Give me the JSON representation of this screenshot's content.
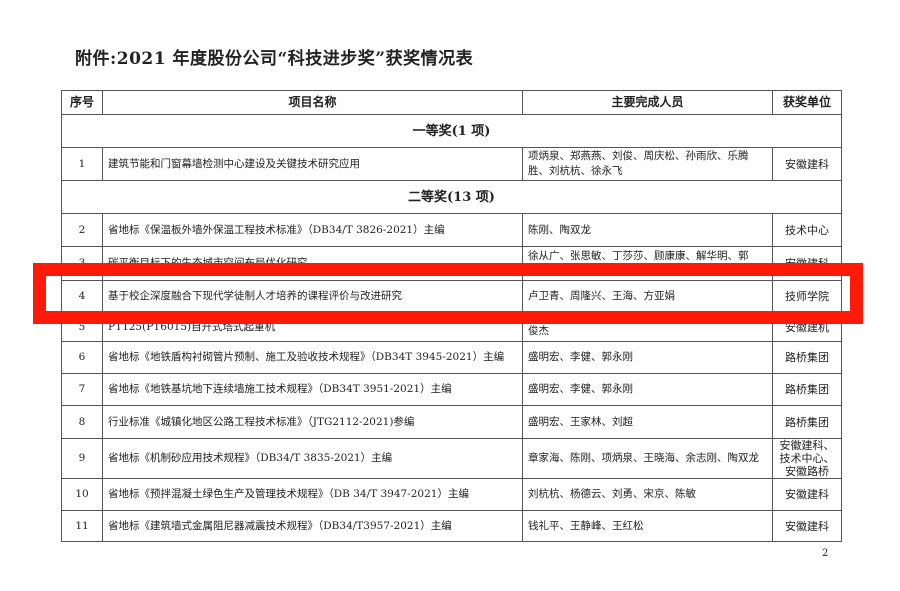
{
  "title": "附件:2021 年度股份公司“科技进步奖”获奖情况表",
  "headers": [
    "序号",
    "项目名称",
    "主要完成人员",
    "获奖单位"
  ],
  "sections": {
    "first": "一等奖(1 项)",
    "second": "二等奖(13 项)"
  },
  "rows": [
    {
      "no": "1",
      "name": "建筑节能和门窗幕墙检测中心建设及关键技术研究应用",
      "people": "项炳泉、郑燕燕、刘俊、周庆松、孙雨欣、乐腾胜、刘杭杭、徐永飞",
      "unit": "安徽建科"
    },
    {
      "no": "2",
      "name": "省地标《保温板外墙外保温工程技术标准》（DB34/T  3826-2021）主编",
      "people": "陈刚、陶双龙",
      "unit": "技术中心"
    },
    {
      "no": "3",
      "name": "碳平衡目标下的生态城市空间布局优化研究",
      "people": "徐从广、张思敏、丁莎莎、顾康康、解华明、郭",
      "unit": "安徽建科"
    },
    {
      "no": "4",
      "name": "基于校企深度融合下现代学徒制人才培养的课程评价与改进研究",
      "people": "卢卫青、周隆兴、王海、方亚娟",
      "unit": "技师学院"
    },
    {
      "no": "5",
      "name": "PT125(PT6015)自升式塔式起重机",
      "people": "俊杰",
      "unit": "安徽建机"
    },
    {
      "no": "6",
      "name": "省地标《地铁盾构衬砌管片预制、施工及验收技术规程》（DB34T 3945-2021）主编",
      "people": "盛明宏、李健、郭永刚",
      "unit": "路桥集团"
    },
    {
      "no": "7",
      "name": "省地标《地铁基坑地下连续墙施工技术规程》（DB34T 3951-2021）主编",
      "people": "盛明宏、李健、郭永刚",
      "unit": "路桥集团"
    },
    {
      "no": "8",
      "name": "行业标准《城镇化地区公路工程技术标准》（JTG2112-2021)参编",
      "people": "盛明宏、王家林、刘超",
      "unit": "路桥集团"
    },
    {
      "no": "9",
      "name": "省地标《机制砂应用技术规程》（DB34/T 3835-2021）主编",
      "people": "章家海、陈刚、项炳泉、王晓海、余志刚、陶双龙",
      "unit": "安徽建科、技术中心、安徽路桥"
    },
    {
      "no": "10",
      "name": "省地标《预拌混凝土绿色生产及管理技术规程》（DB 34/T 3947-2021）主编",
      "people": "刘杭杭、杨德云、刘勇、宋京、陈敏",
      "unit": "安徽建科"
    },
    {
      "no": "11",
      "name": "省地标《建筑墙式金属阻尼器减震技术规程》（DB34/T3957-2021）主编",
      "people": "钱礼平、王静峰、王红松",
      "unit": "安徽建科"
    }
  ],
  "page_number": "2",
  "highlight_color": "#ff1a0a"
}
